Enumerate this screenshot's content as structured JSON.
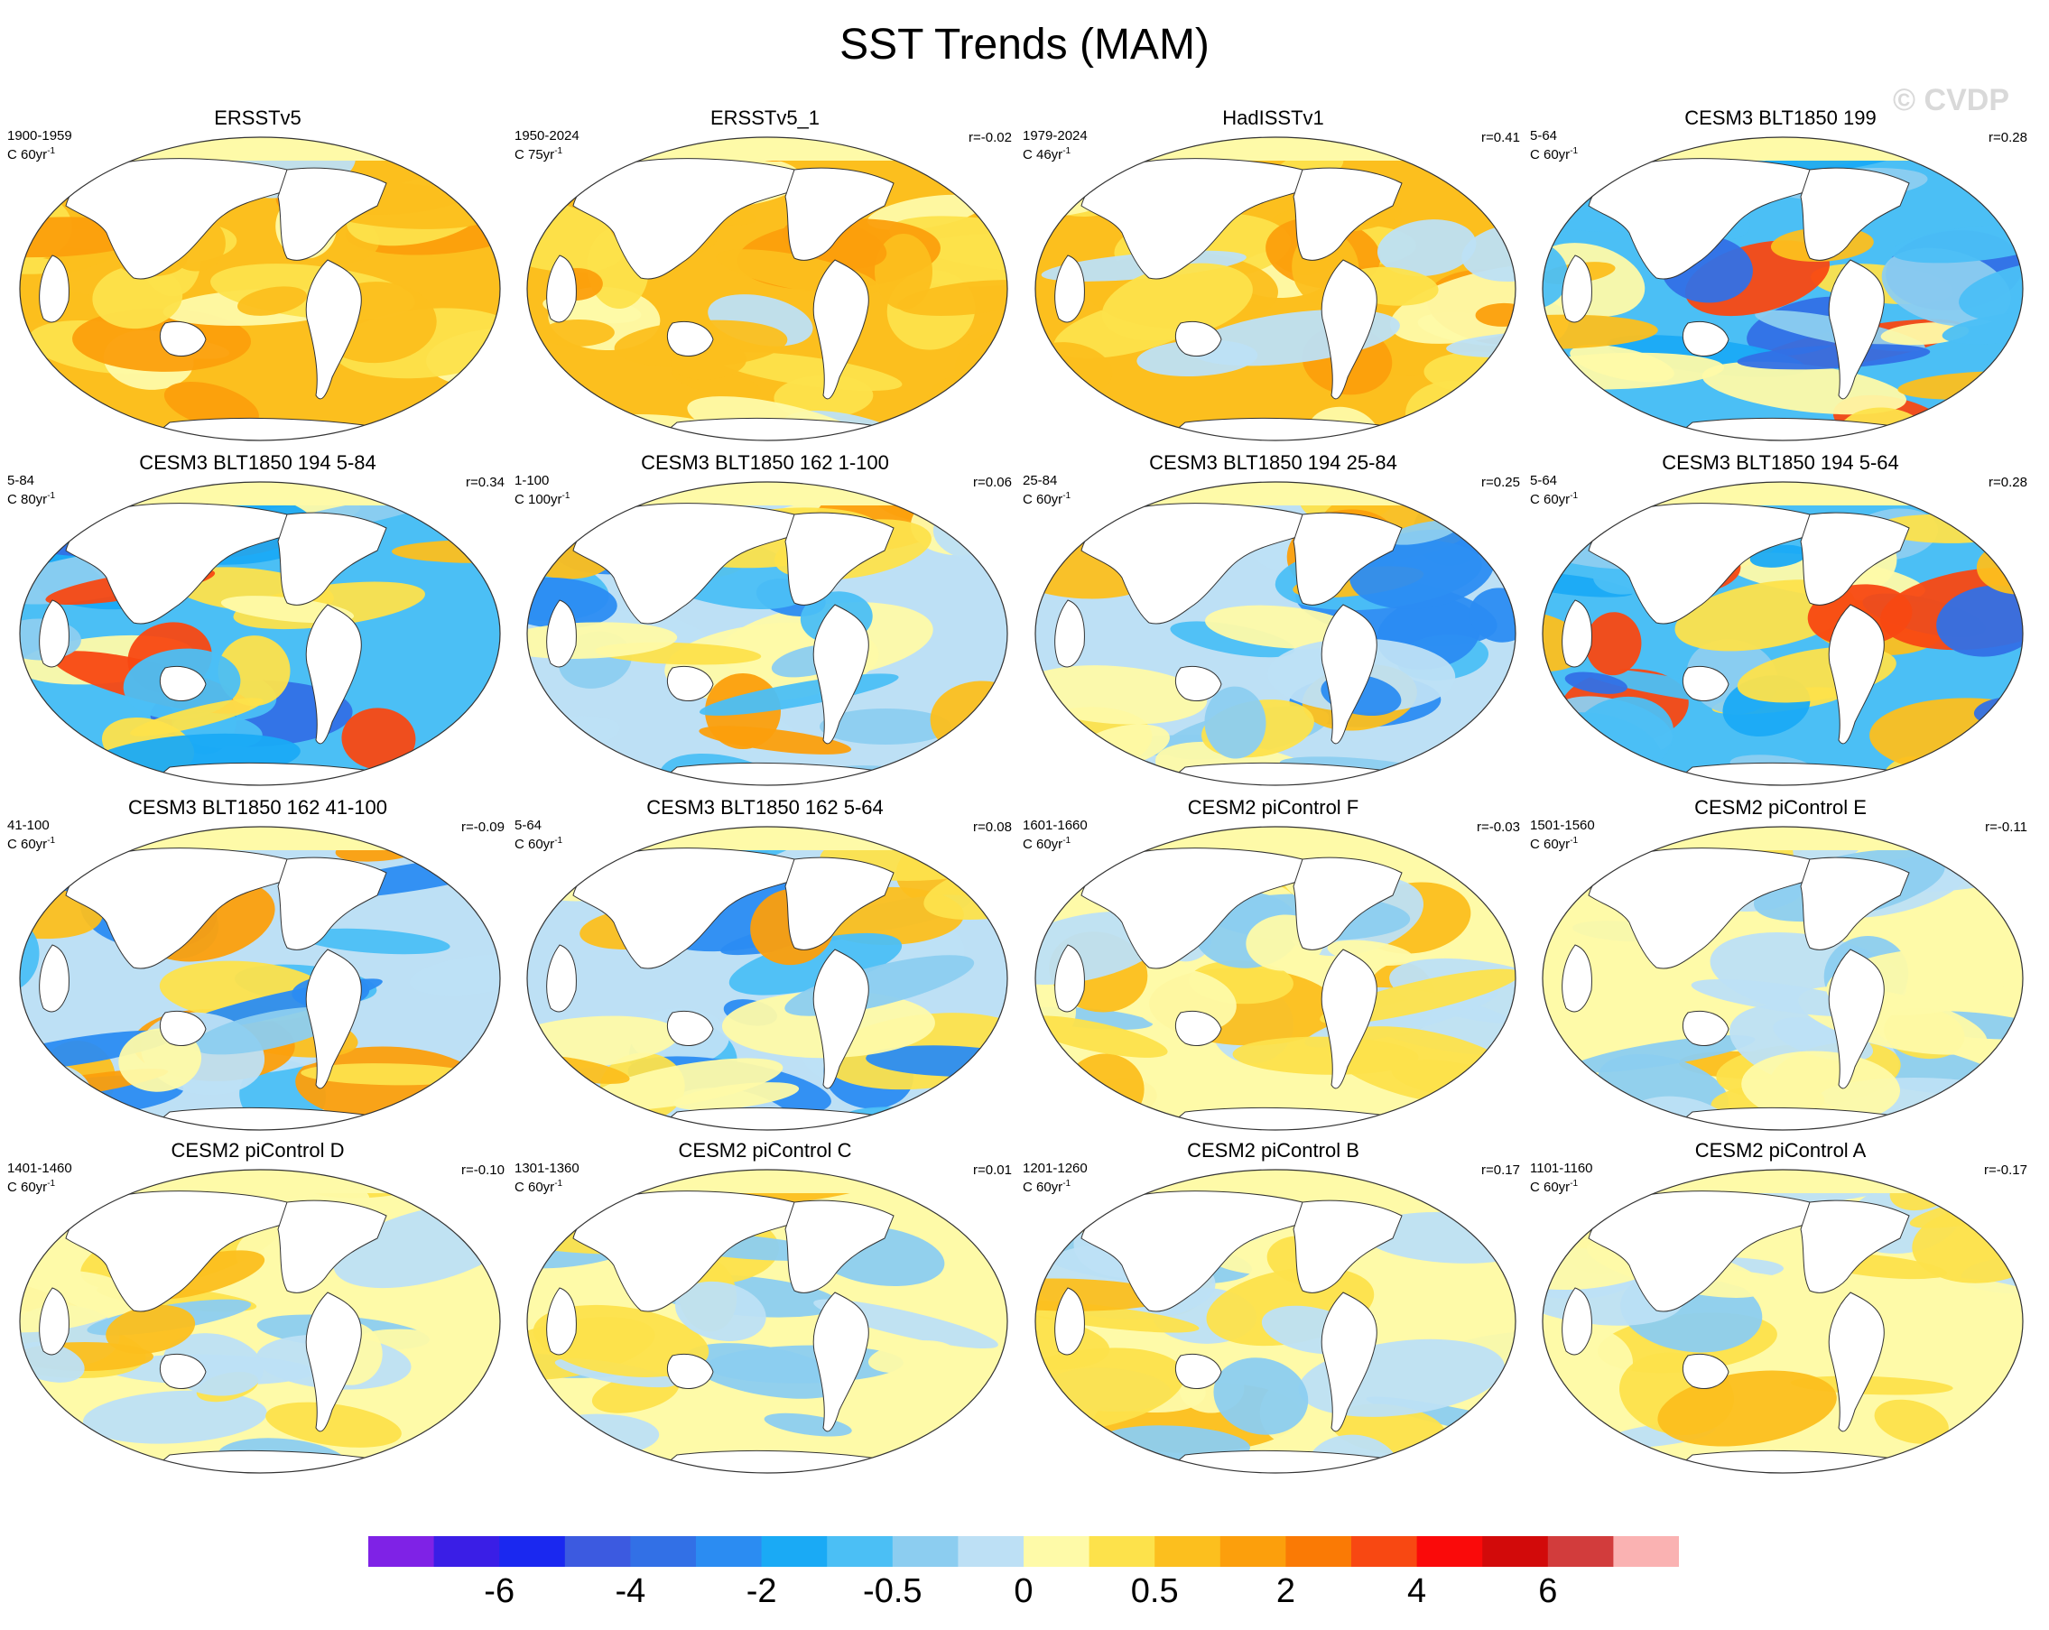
{
  "title": "SST Trends (MAM)",
  "watermark": "© CVDP",
  "panels": [
    {
      "title": "ERSSTv5",
      "years": "1900-1959",
      "units": "C 60yr",
      "r": "",
      "pattern": "warm"
    },
    {
      "title": "ERSSTv5_1",
      "years": "1950-2024",
      "units": "C 75yr",
      "r": "r=-0.02",
      "pattern": "warm"
    },
    {
      "title": "HadISSTv1",
      "years": "1979-2024",
      "units": "C 46yr",
      "r": "r=0.41",
      "pattern": "warm"
    },
    {
      "title": "CESM3 BLT1850 199",
      "years": "5-64",
      "units": "C 60yr",
      "r": "r=0.28",
      "pattern": "cold"
    },
    {
      "title": "CESM3 BLT1850 194 5-84",
      "years": "5-84",
      "units": "C 80yr",
      "r": "r=0.34",
      "pattern": "cold"
    },
    {
      "title": "CESM3 BLT1850 162 1-100",
      "years": "1-100",
      "units": "C 100yr",
      "r": "r=0.06",
      "pattern": "mixed"
    },
    {
      "title": "CESM3 BLT1850 194 25-84",
      "years": "25-84",
      "units": "C 60yr",
      "r": "r=0.25",
      "pattern": "mixed"
    },
    {
      "title": "CESM3 BLT1850 194 5-64",
      "years": "5-64",
      "units": "C 60yr",
      "r": "r=0.28",
      "pattern": "cold"
    },
    {
      "title": "CESM3 BLT1850 162 41-100",
      "years": "41-100",
      "units": "C 60yr",
      "r": "r=-0.09",
      "pattern": "mixed"
    },
    {
      "title": "CESM3 BLT1850 162 5-64",
      "years": "5-64",
      "units": "C 60yr",
      "r": "r=0.08",
      "pattern": "mixed"
    },
    {
      "title": "CESM2 piControl F",
      "years": "1601-1660",
      "units": "C 60yr",
      "r": "r=-0.03",
      "pattern": "weak"
    },
    {
      "title": "CESM2 piControl E",
      "years": "1501-1560",
      "units": "C 60yr",
      "r": "r=-0.11",
      "pattern": "weak"
    },
    {
      "title": "CESM2 piControl D",
      "years": "1401-1460",
      "units": "C 60yr",
      "r": "r=-0.10",
      "pattern": "weak"
    },
    {
      "title": "CESM2 piControl C",
      "years": "1301-1360",
      "units": "C 60yr",
      "r": "r=0.01",
      "pattern": "weak"
    },
    {
      "title": "CESM2 piControl B",
      "years": "1201-1260",
      "units": "C 60yr",
      "r": "r=0.17",
      "pattern": "weak"
    },
    {
      "title": "CESM2 piControl A",
      "years": "1101-1160",
      "units": "C 60yr",
      "r": "r=-0.17",
      "pattern": "weak"
    }
  ],
  "colorbar": {
    "colors": [
      "#7f22e6",
      "#3a1ee6",
      "#1a28f0",
      "#3c5ae0",
      "#3270e6",
      "#2b8cf2",
      "#1aaaf5",
      "#4bbff5",
      "#8ccdf0",
      "#bde0f5",
      "#fefaa8",
      "#fde24b",
      "#fcbf1e",
      "#fc9f0c",
      "#fa7a05",
      "#f84812",
      "#fa0a0a",
      "#d20a0a",
      "#d23c3c",
      "#fab2b2"
    ],
    "labels": [
      {
        "text": "-6",
        "index": 2
      },
      {
        "text": "-4",
        "index": 4
      },
      {
        "text": "-2",
        "index": 6
      },
      {
        "text": "-0.5",
        "index": 8
      },
      {
        "text": "0",
        "index": 10
      },
      {
        "text": "0.5",
        "index": 12
      },
      {
        "text": "2",
        "index": 14
      },
      {
        "text": "4",
        "index": 16
      },
      {
        "text": "6",
        "index": 18
      }
    ]
  }
}
